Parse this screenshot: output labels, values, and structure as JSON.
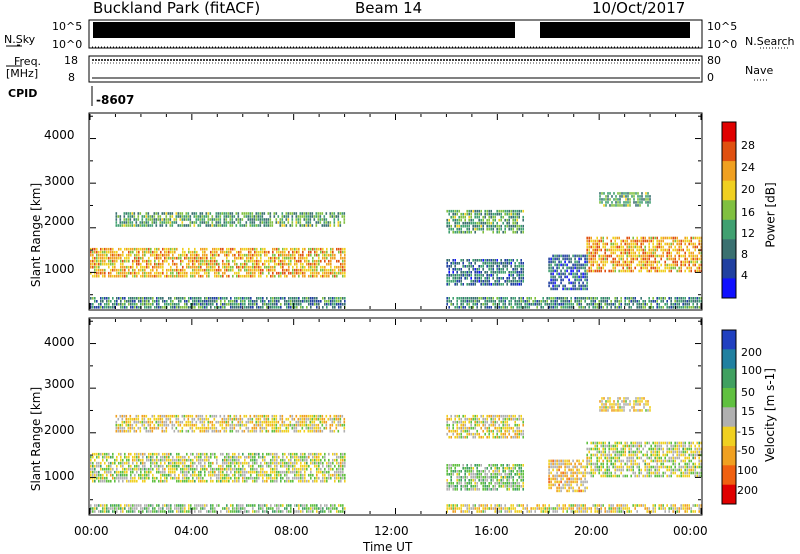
{
  "header": {
    "station": "Buckland Park (fitACF)",
    "beam": "Beam 14",
    "date": "10/Oct/2017"
  },
  "top_panels": {
    "nsky_label": "N.Sky",
    "nsearch_label": "N.Search",
    "noise_ticks": [
      "10^5",
      "10^0"
    ],
    "freq_label_1": "Freq.",
    "freq_label_2": "[MHz]",
    "freq_ticks": [
      "18",
      "8"
    ],
    "nave_label": "Nave",
    "nave_ticks": [
      "80",
      "0"
    ],
    "cpid_label": "CPID",
    "cpid_value": "-8607"
  },
  "colors": {
    "power_scale": [
      "#1010ff",
      "#2040a0",
      "#3a7070",
      "#40a070",
      "#80c040",
      "#f0d020",
      "#f0a020",
      "#e05010",
      "#e00000"
    ],
    "velocity_scale": [
      "#2040c0",
      "#2080a0",
      "#40a060",
      "#60c040",
      "#b0b0b0",
      "#f0d020",
      "#f0a020",
      "#f06010",
      "#e00000"
    ]
  },
  "chart_data": [
    {
      "type": "heatmap",
      "quantity": "Power",
      "ylabel": "Slant Range [km]",
      "yticks": [
        "1000",
        "2000",
        "3000",
        "4000"
      ],
      "ylim": [
        180,
        4550
      ],
      "xlim_hours": [
        0,
        24
      ],
      "colorbar_label": "Power [dB]",
      "colorbar_ticks": [
        "4",
        "8",
        "12",
        "16",
        "20",
        "24",
        "28"
      ],
      "colorbar_range": [
        0,
        30
      ],
      "echo_regions": [
        {
          "t0": 0.0,
          "t1": 10.0,
          "r0": 900,
          "r1": 1550,
          "value": 20
        },
        {
          "t0": 0.0,
          "t1": 10.0,
          "r0": 220,
          "r1": 450,
          "value": 10
        },
        {
          "t0": 1.0,
          "t1": 10.0,
          "r0": 2050,
          "r1": 2350,
          "value": 12
        },
        {
          "t0": 14.0,
          "t1": 17.0,
          "r0": 700,
          "r1": 1300,
          "value": 8
        },
        {
          "t0": 14.0,
          "t1": 17.0,
          "r0": 1900,
          "r1": 2400,
          "value": 12
        },
        {
          "t0": 18.0,
          "t1": 19.5,
          "r0": 600,
          "r1": 1400,
          "value": 7
        },
        {
          "t0": 19.5,
          "t1": 24.0,
          "r0": 1000,
          "r1": 1800,
          "value": 21
        },
        {
          "t0": 20.0,
          "t1": 22.0,
          "r0": 2500,
          "r1": 2800,
          "value": 12
        },
        {
          "t0": 14.0,
          "t1": 24.0,
          "r0": 220,
          "r1": 450,
          "value": 10
        }
      ]
    },
    {
      "type": "heatmap",
      "quantity": "Velocity",
      "xlabel": "Time UT",
      "ylabel": "Slant Range [km]",
      "yticks": [
        "1000",
        "2000",
        "3000",
        "4000"
      ],
      "ylim": [
        180,
        4550
      ],
      "xticks": [
        "00:00",
        "04:00",
        "08:00",
        "12:00",
        "16:00",
        "20:00",
        "00:00"
      ],
      "xlim_hours": [
        0,
        24
      ],
      "colorbar_label": "Velocity [m s-1]",
      "colorbar_ticks": [
        "200",
        "100",
        "50",
        "15",
        "-15",
        "-50",
        "-100",
        "-200"
      ],
      "colorbar_range": [
        -250,
        250
      ],
      "echo_regions": [
        {
          "t0": 0.0,
          "t1": 10.0,
          "r0": 900,
          "r1": 1550,
          "value": 0
        },
        {
          "t0": 0.0,
          "t1": 10.0,
          "r0": 220,
          "r1": 400,
          "value": 40
        },
        {
          "t0": 1.0,
          "t1": 10.0,
          "r0": 2050,
          "r1": 2400,
          "value": -40
        },
        {
          "t0": 14.0,
          "t1": 17.0,
          "r0": 700,
          "r1": 1300,
          "value": 40
        },
        {
          "t0": 14.0,
          "t1": 17.0,
          "r0": 1900,
          "r1": 2400,
          "value": -30
        },
        {
          "t0": 18.0,
          "t1": 19.5,
          "r0": 700,
          "r1": 1400,
          "value": -60
        },
        {
          "t0": 19.5,
          "t1": 24.0,
          "r0": 1000,
          "r1": 1800,
          "value": 0
        },
        {
          "t0": 20.0,
          "t1": 22.0,
          "r0": 2500,
          "r1": 2800,
          "value": -40
        },
        {
          "t0": 14.0,
          "t1": 24.0,
          "r0": 220,
          "r1": 400,
          "value": -40
        }
      ]
    }
  ]
}
